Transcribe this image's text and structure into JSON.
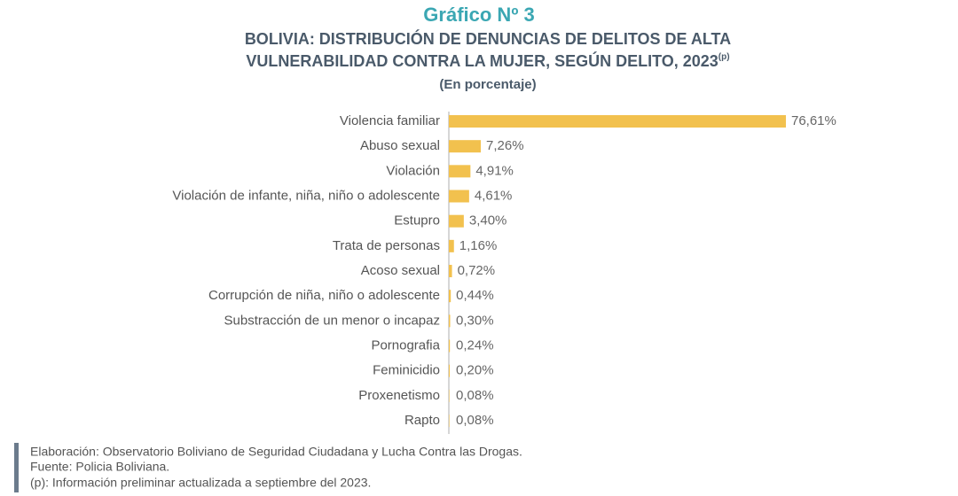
{
  "chart_data": {
    "type": "bar",
    "orientation": "horizontal",
    "title": "Gráfico Nº 3",
    "subtitle_lines": [
      "BOLIVIA: DISTRIBUCIÓN DE DENUNCIAS DE DELITOS DE ALTA",
      "VULNERABILIDAD CONTRA LA MUJER, SEGÚN DELITO, 2023"
    ],
    "subtitle_superscript": "(p)",
    "unit_note": "(En porcentaje)",
    "categories": [
      "Violencia familiar",
      "Abuso sexual",
      "Violación",
      "Violación de infante, niña, niño o adolescente",
      "Estupro",
      "Trata de personas",
      "Acoso sexual",
      "Corrupción de niña, niño o adolescente",
      "Substracción de un menor o incapaz",
      "Pornografia",
      "Feminicidio",
      "Proxenetismo",
      "Rapto"
    ],
    "values": [
      76.61,
      7.26,
      4.91,
      4.61,
      3.4,
      1.16,
      0.72,
      0.44,
      0.3,
      0.24,
      0.2,
      0.08,
      0.08
    ],
    "value_labels": [
      "76,61%",
      "7,26%",
      "4,91%",
      "4,61%",
      "3,40%",
      "1,16%",
      "0,72%",
      "0,44%",
      "0,30%",
      "0,24%",
      "0,20%",
      "0,08%",
      "0,08%"
    ],
    "color": "#f2c14e",
    "notes": [
      "Elaboración: Observatorio Boliviano de Seguridad Ciudadana y Lucha Contra las Drogas.",
      "Fuente: Policia Boliviana.",
      "(p): Información preliminar actualizada a septiembre del 2023."
    ]
  }
}
